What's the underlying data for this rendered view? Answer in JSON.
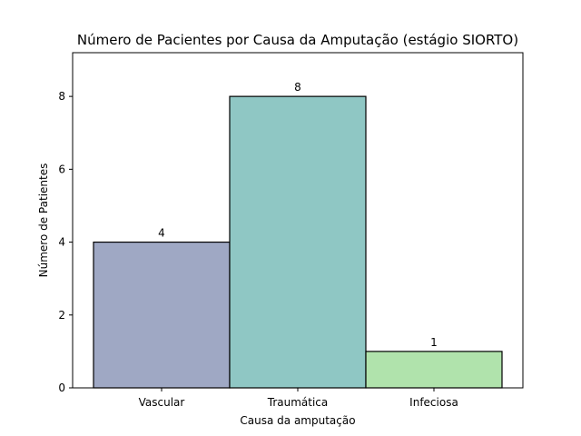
{
  "chart_data": {
    "type": "bar",
    "title": "Número de Pacientes por Causa da Amputação (estágio SIORTO)",
    "xlabel": "Causa da amputação",
    "ylabel": "Número de Patientes",
    "categories": [
      "Vascular",
      "Traumática",
      "Infeciosa"
    ],
    "values": [
      4,
      8,
      1
    ],
    "data_labels": [
      "4",
      "8",
      "1"
    ],
    "colors": [
      "#9fa8c4",
      "#8fc7c4",
      "#b0e3ac"
    ],
    "ylim": [
      0,
      9.2
    ],
    "yticks": [
      0,
      2,
      4,
      6,
      8
    ],
    "ytick_labels": [
      "0",
      "2",
      "4",
      "6",
      "8"
    ],
    "grid": false,
    "legend": "none"
  }
}
